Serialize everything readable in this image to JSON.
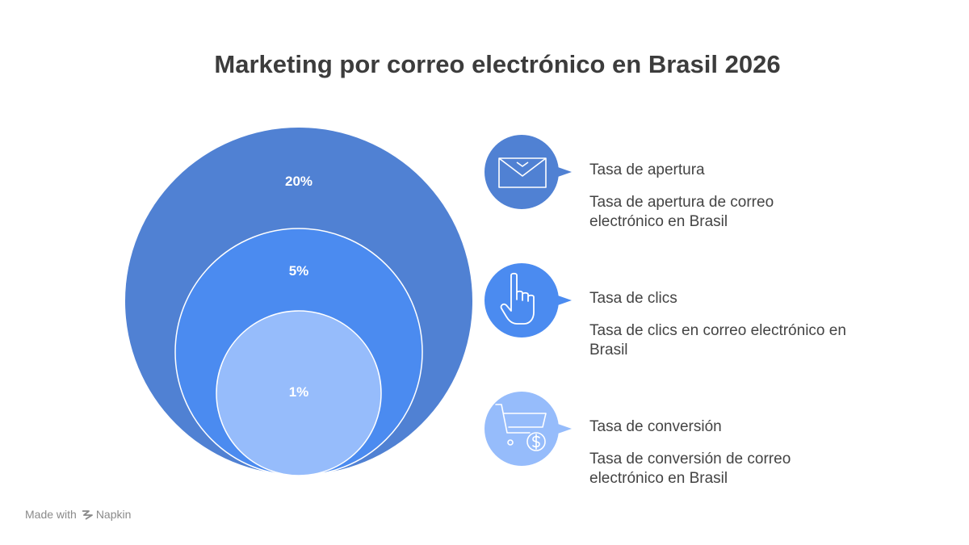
{
  "title": "Marketing por correo electrónico en Brasil 2026",
  "circles": [
    {
      "label": "20%",
      "color": "#5081d3"
    },
    {
      "label": "5%",
      "color": "#4b8bf0"
    },
    {
      "label": "1%",
      "color": "#96bcfb"
    }
  ],
  "items": [
    {
      "title": "Tasa de apertura",
      "description": "Tasa de apertura de correo electrónico en Brasil",
      "icon": "envelope-icon",
      "color": "#5081d3"
    },
    {
      "title": "Tasa de clics",
      "description": "Tasa de clics en correo electrónico en Brasil",
      "icon": "pointing-hand-icon",
      "color": "#4b8bf0"
    },
    {
      "title": "Tasa de conversión",
      "description": "Tasa de conversión de correo electrónico en Brasil",
      "icon": "shopping-cart-dollar-icon",
      "color": "#96bcfb"
    }
  ],
  "footer": {
    "made_with": "Made with",
    "brand": "Napkin"
  }
}
